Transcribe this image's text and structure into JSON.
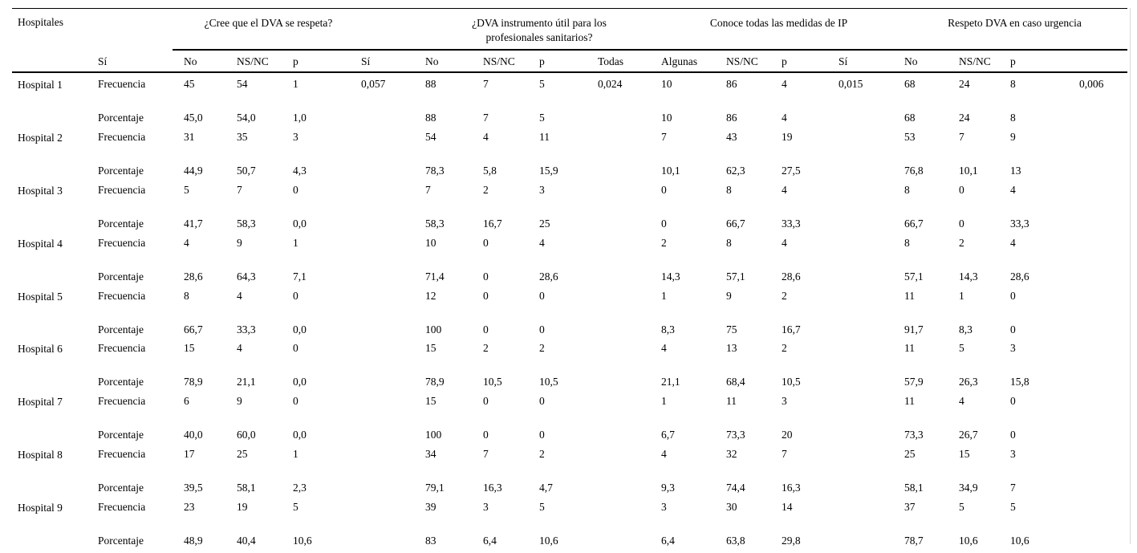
{
  "table": {
    "corner_label": "Hospitales",
    "groups": [
      {
        "label": "¿Cree que el DVA se respeta?"
      },
      {
        "label": "¿DVA instrumento útil para los profesionales sanitarios?"
      },
      {
        "label": "Conoce todas las medidas de IP"
      },
      {
        "label": "Respeto DVA en caso urgencia"
      }
    ],
    "subheaders": [
      "",
      "Sí",
      "No",
      "NS/NC",
      "p",
      "Sí",
      "No",
      "NS/NC",
      "p",
      "Todas",
      "Algunas",
      "NS/NC",
      "p",
      "Sí",
      "No",
      "NS/NC",
      "p",
      ""
    ],
    "row_labels": {
      "frequency": "Frecuencia",
      "percentage": "Porcentaje"
    },
    "rows": [
      {
        "hospital": "Hospital 1",
        "frecuencia": [
          "45",
          "54",
          "1",
          "0,057",
          "88",
          "7",
          "5",
          "0,024",
          "10",
          "86",
          "4",
          "0,015",
          "68",
          "24",
          "8",
          "0,006"
        ],
        "porcentaje": [
          "45,0",
          "54,0",
          "1,0",
          "",
          "88",
          "7",
          "5",
          "",
          "10",
          "86",
          "4",
          "",
          "68",
          "24",
          "8",
          ""
        ]
      },
      {
        "hospital": "Hospital 2",
        "frecuencia": [
          "31",
          "35",
          "3",
          "",
          "54",
          "4",
          "11",
          "",
          "7",
          "43",
          "19",
          "",
          "53",
          "7",
          "9",
          ""
        ],
        "porcentaje": [
          "44,9",
          "50,7",
          "4,3",
          "",
          "78,3",
          "5,8",
          "15,9",
          "",
          "10,1",
          "62,3",
          "27,5",
          "",
          "76,8",
          "10,1",
          "13",
          ""
        ]
      },
      {
        "hospital": "Hospital 3",
        "frecuencia": [
          "5",
          "7",
          "0",
          "",
          "7",
          "2",
          "3",
          "",
          "0",
          "8",
          "4",
          "",
          "8",
          "0",
          "4",
          ""
        ],
        "porcentaje": [
          "41,7",
          "58,3",
          "0,0",
          "",
          "58,3",
          "16,7",
          "25",
          "",
          "0",
          "66,7",
          "33,3",
          "",
          "66,7",
          "0",
          "33,3",
          ""
        ]
      },
      {
        "hospital": "Hospital 4",
        "frecuencia": [
          "4",
          "9",
          "1",
          "",
          "10",
          "0",
          "4",
          "",
          "2",
          "8",
          "4",
          "",
          "8",
          "2",
          "4",
          ""
        ],
        "porcentaje": [
          "28,6",
          "64,3",
          "7,1",
          "",
          "71,4",
          "0",
          "28,6",
          "",
          "14,3",
          "57,1",
          "28,6",
          "",
          "57,1",
          "14,3",
          "28,6",
          ""
        ]
      },
      {
        "hospital": "Hospital 5",
        "frecuencia": [
          "8",
          "4",
          "0",
          "",
          "12",
          "0",
          "0",
          "",
          "1",
          "9",
          "2",
          "",
          "11",
          "1",
          "0",
          ""
        ],
        "porcentaje": [
          "66,7",
          "33,3",
          "0,0",
          "",
          "100",
          "0",
          "0",
          "",
          "8,3",
          "75",
          "16,7",
          "",
          "91,7",
          "8,3",
          "0",
          ""
        ]
      },
      {
        "hospital": "Hospital 6",
        "frecuencia": [
          "15",
          "4",
          "0",
          "",
          "15",
          "2",
          "2",
          "",
          "4",
          "13",
          "2",
          "",
          "11",
          "5",
          "3",
          ""
        ],
        "porcentaje": [
          "78,9",
          "21,1",
          "0,0",
          "",
          "78,9",
          "10,5",
          "10,5",
          "",
          "21,1",
          "68,4",
          "10,5",
          "",
          "57,9",
          "26,3",
          "15,8",
          ""
        ]
      },
      {
        "hospital": "Hospital 7",
        "frecuencia": [
          "6",
          "9",
          "0",
          "",
          "15",
          "0",
          "0",
          "",
          "1",
          "11",
          "3",
          "",
          "11",
          "4",
          "0",
          ""
        ],
        "porcentaje": [
          "40,0",
          "60,0",
          "0,0",
          "",
          "100",
          "0",
          "0",
          "",
          "6,7",
          "73,3",
          "20",
          "",
          "73,3",
          "26,7",
          "0",
          ""
        ]
      },
      {
        "hospital": "Hospital 8",
        "frecuencia": [
          "17",
          "25",
          "1",
          "",
          "34",
          "7",
          "2",
          "",
          "4",
          "32",
          "7",
          "",
          "25",
          "15",
          "3",
          ""
        ],
        "porcentaje": [
          "39,5",
          "58,1",
          "2,3",
          "",
          "79,1",
          "16,3",
          "4,7",
          "",
          "9,3",
          "74,4",
          "16,3",
          "",
          "58,1",
          "34,9",
          "7",
          ""
        ]
      },
      {
        "hospital": "Hospital 9",
        "frecuencia": [
          "23",
          "19",
          "5",
          "",
          "39",
          "3",
          "5",
          "",
          "3",
          "30",
          "14",
          "",
          "37",
          "5",
          "5",
          ""
        ],
        "porcentaje": [
          "48,9",
          "40,4",
          "10,6",
          "",
          "83",
          "6,4",
          "10,6",
          "",
          "6,4",
          "63,8",
          "29,8",
          "",
          "78,7",
          "10,6",
          "10,6",
          ""
        ]
      }
    ]
  }
}
